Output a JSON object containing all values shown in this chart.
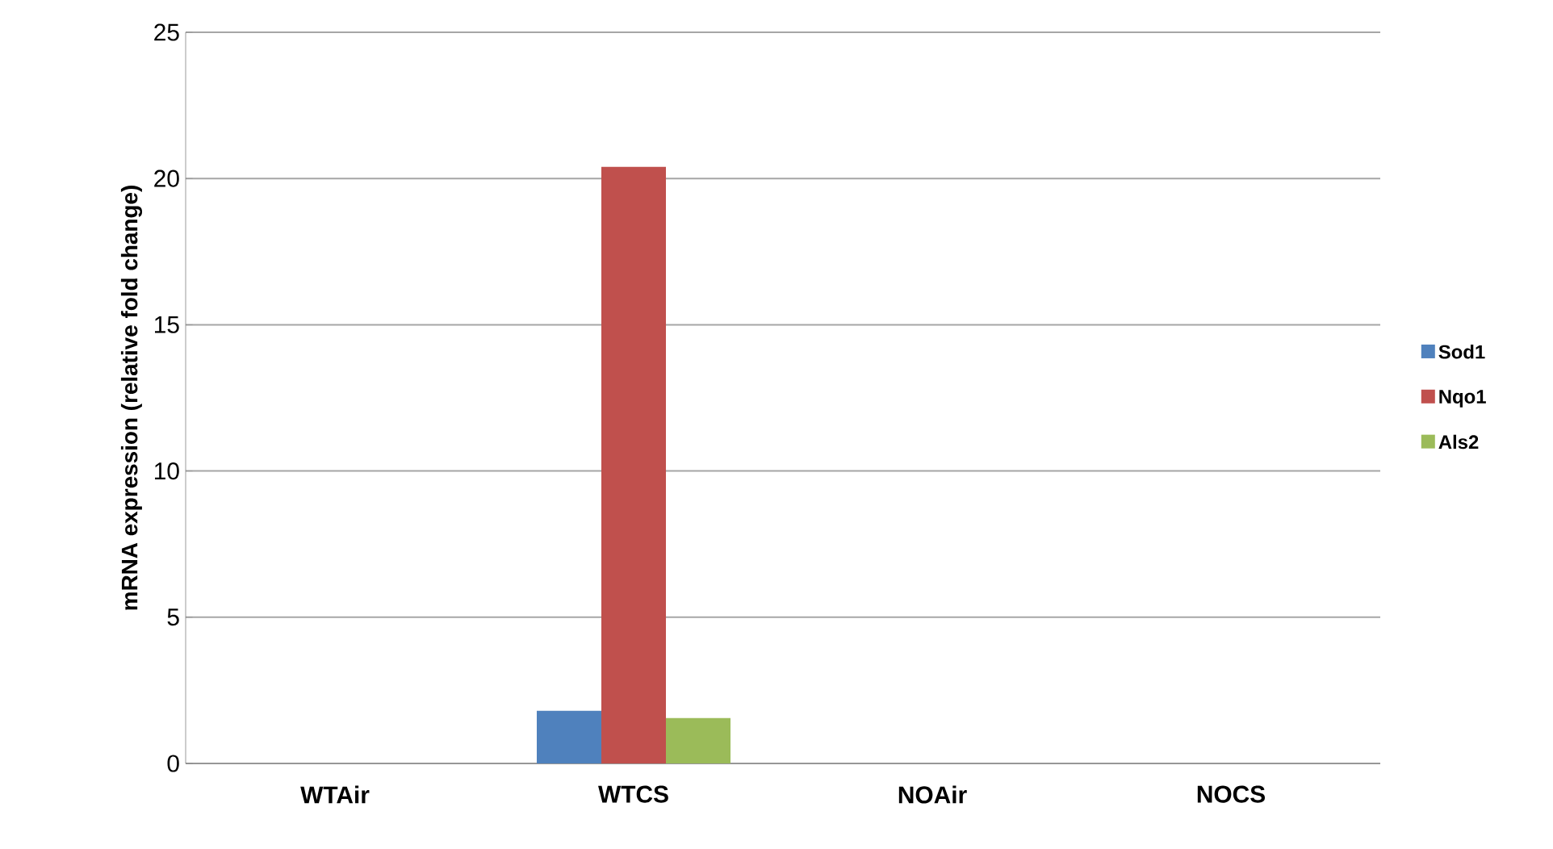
{
  "chart_data": {
    "type": "bar",
    "ylabel": "mRNA expression (relative fold change)",
    "categories": [
      "WTAir",
      "WTCS",
      "NOAir",
      "NOCS"
    ],
    "series": [
      {
        "name": "Sod1",
        "color": "#4f81bd",
        "values": [
          null,
          1.8,
          null,
          null
        ]
      },
      {
        "name": "Nqo1",
        "color": "#c0504d",
        "values": [
          null,
          20.4,
          null,
          null
        ]
      },
      {
        "name": "Als2",
        "color": "#9bbb59",
        "values": [
          null,
          1.55,
          null,
          null
        ]
      }
    ],
    "ylim": [
      0,
      25
    ],
    "yticks": [
      0,
      5,
      10,
      15,
      20,
      25
    ],
    "grid": "y",
    "legend": "right"
  }
}
